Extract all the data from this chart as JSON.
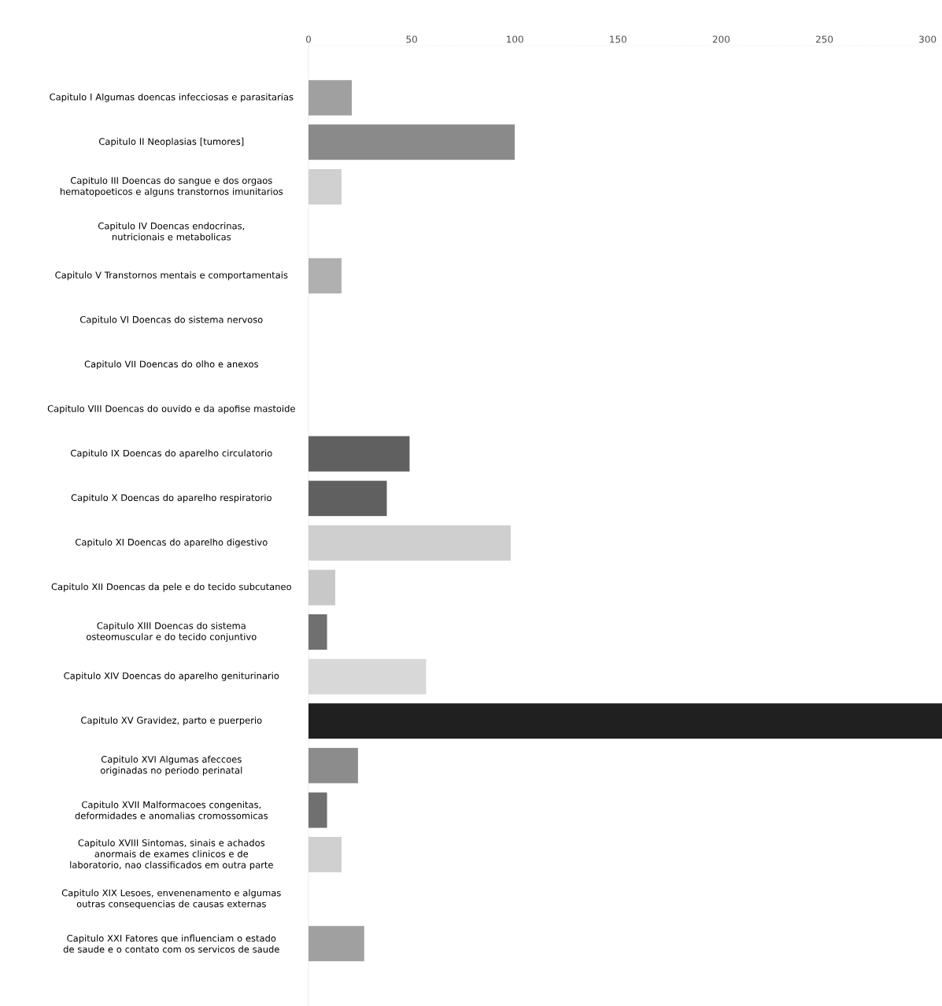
{
  "chart_data": {
    "type": "bar",
    "orientation": "horizontal",
    "categories": [
      "Capitulo I Algumas doencas infecciosas e parasitarias",
      "Capitulo II Neoplasias [tumores]",
      "Capitulo III Doencas do sangue e dos orgaos hematopoeticos e alguns transtornos imunitarios",
      "Capitulo IV Doencas endocrinas, nutricionais e metabolicas",
      "Capitulo V Transtornos mentais e comportamentais",
      "Capitulo VI Doencas do sistema nervoso",
      "Capitulo VII Doencas do olho e anexos",
      "Capitulo VIII Doencas do ouvido e da apofise mastoide",
      "Capitulo IX Doencas do aparelho circulatorio",
      "Capitulo X Doencas do aparelho respiratorio",
      "Capitulo XI Doencas do aparelho digestivo",
      "Capitulo XII Doencas da pele e do tecido subcutaneo",
      "Capitulo XIII Doencas do sistema osteomuscular e do tecido conjuntivo",
      "Capitulo XIV Doencas do aparelho geniturinario",
      "Capitulo XV Gravidez, parto e puerperio",
      "Capitulo XVI Algumas afeccoes originadas no periodo perinatal",
      "Capitulo XVII Malformacoes congenitas, deformidades e anomalias cromossomicas",
      "Capitulo XVIII Sintomas, sinais e achados anormais de exames clinicos e de laboratorio, nao classificados em outra parte",
      "Capitulo XIX Lesoes, envenenamento e algumas outras consequencias de causas externas",
      "Capitulo XXI Fatores que influenciam o estado de saude e o contato com os servicos de saude"
    ],
    "values": [
      21,
      100,
      16,
      0,
      16,
      0,
      0,
      0,
      49,
      38,
      98,
      13,
      9,
      57,
      307,
      24,
      9,
      16,
      0,
      27
    ],
    "colors": [
      "#a0a0a0",
      "#8a8a8a",
      "#d0d0d0",
      "#c8c8c8",
      "#b0b0b0",
      "#d8d8d8",
      "#d8d8d8",
      "#d8d8d8",
      "#606060",
      "#606060",
      "#cfcfcf",
      "#c8c8c8",
      "#707070",
      "#d8d8d8",
      "#202020",
      "#8c8c8c",
      "#707070",
      "#d0d0d0",
      "#d0d0d0",
      "#a0a0a0"
    ],
    "xlim": [
      0,
      307
    ],
    "xticks": [
      0,
      50,
      100,
      150,
      200,
      250,
      300
    ]
  }
}
